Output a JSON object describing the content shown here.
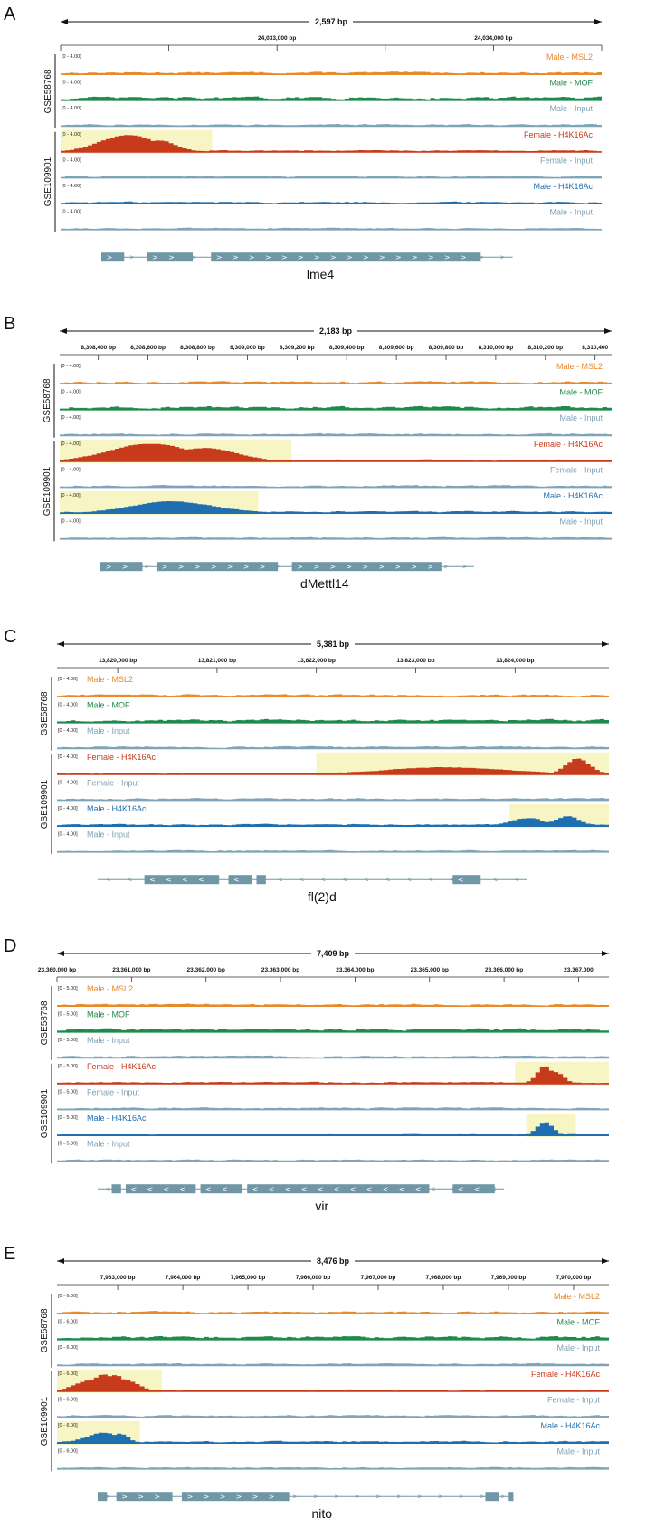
{
  "colors": {
    "Male - MSL2": "#e8892b",
    "Male - MOF": "#1e8a4c",
    "Male - Input": "#7fa3b7",
    "Female - H4K16Ac": "#c83a1c",
    "Female - Input": "#7fa3b7",
    "Male - H4K16Ac": "#1f6fb0",
    "highlight": "#f7f5c4",
    "gene": "#6f97a6"
  },
  "groups": [
    "GSE58768",
    "GSE109901"
  ],
  "tracks": [
    "Male - MSL2",
    "Male - MOF",
    "Male - Input",
    "Female - H4K16Ac",
    "Female - Input",
    "Male - H4K16Ac",
    "Male - Input"
  ],
  "panels": [
    {
      "letter": "A",
      "span_label": "2,597 bp",
      "ticks": [
        {
          "label": "",
          "pos": 0.0
        },
        {
          "label": "",
          "pos": 0.2
        },
        {
          "label": "24,033,000 bp",
          "pos": 0.4
        },
        {
          "label": "",
          "pos": 0.6
        },
        {
          "label": "24,034,000 bp",
          "pos": 0.8
        },
        {
          "label": "",
          "pos": 1.0
        }
      ],
      "range": "[0 - 4.00]",
      "label_side": "right",
      "gene": "lme4",
      "highlights": [
        {
          "track": 3,
          "from": 0.0,
          "to": 0.28
        }
      ],
      "peaks": {
        "3": [
          [
            0.12,
            0.07,
            0.9
          ],
          [
            0.18,
            0.04,
            0.6
          ]
        ]
      },
      "exons": [
        [
          0.0,
          0.05
        ],
        [
          0.1,
          0.2
        ],
        [
          0.24,
          0.83
        ]
      ],
      "gene_strand": ">",
      "gene_extent": [
        0.0,
        0.9
      ]
    },
    {
      "letter": "B",
      "span_label": "2,183 bp",
      "ticks": [
        {
          "label": "8,308,400 bp",
          "pos": 0.07
        },
        {
          "label": "8,308,600 bp",
          "pos": 0.16
        },
        {
          "label": "8,308,800 bp",
          "pos": 0.25
        },
        {
          "label": "8,309,000 bp",
          "pos": 0.34
        },
        {
          "label": "8,309,200 bp",
          "pos": 0.43
        },
        {
          "label": "8,309,400 bp",
          "pos": 0.52
        },
        {
          "label": "8,309,600 bp",
          "pos": 0.61
        },
        {
          "label": "8,309,800 bp",
          "pos": 0.7
        },
        {
          "label": "8,310,000 bp",
          "pos": 0.79
        },
        {
          "label": "8,310,200 bp",
          "pos": 0.88
        },
        {
          "label": "8,310,400",
          "pos": 0.97
        }
      ],
      "range": "[0 - 4.00]",
      "label_side": "right",
      "gene": "dMettl14",
      "highlights": [
        {
          "track": 3,
          "from": 0.0,
          "to": 0.42
        },
        {
          "track": 5,
          "from": 0.0,
          "to": 0.36
        }
      ],
      "peaks": {
        "3": [
          [
            0.16,
            0.1,
            0.95
          ],
          [
            0.26,
            0.08,
            0.7
          ]
        ],
        "5": [
          [
            0.2,
            0.1,
            0.6
          ]
        ]
      },
      "exons": [
        [
          0.0,
          0.09
        ],
        [
          0.12,
          0.38
        ],
        [
          0.41,
          0.73
        ]
      ],
      "gene_strand": ">",
      "gene_extent": [
        0.0,
        0.8
      ]
    },
    {
      "letter": "C",
      "span_label": "5,381 bp",
      "ticks": [
        {
          "label": "13,820,000 bp",
          "pos": 0.11
        },
        {
          "label": "13,821,000 bp",
          "pos": 0.29
        },
        {
          "label": "13,822,000 bp",
          "pos": 0.47
        },
        {
          "label": "13,823,000 bp",
          "pos": 0.65
        },
        {
          "label": "13,824,000 bp",
          "pos": 0.83
        }
      ],
      "range": "[0 - 4.00]",
      "label_side": "left",
      "gene": "fl(2)d",
      "highlights": [
        {
          "track": 3,
          "from": 0.47,
          "to": 1.0
        },
        {
          "track": 5,
          "from": 0.82,
          "to": 1.0
        }
      ],
      "peaks": {
        "3": [
          [
            0.94,
            0.03,
            0.85
          ],
          [
            0.7,
            0.15,
            0.35
          ]
        ],
        "5": [
          [
            0.92,
            0.03,
            0.5
          ],
          [
            0.85,
            0.04,
            0.4
          ]
        ]
      },
      "exons": [
        [
          0.1,
          0.26
        ],
        [
          0.28,
          0.33
        ],
        [
          0.34,
          0.36
        ],
        [
          0.76,
          0.82
        ]
      ],
      "gene_strand": "<",
      "gene_extent": [
        0.0,
        0.92
      ]
    },
    {
      "letter": "D",
      "span_label": "7,409 bp",
      "ticks": [
        {
          "label": "23,360,000 bp",
          "pos": 0.0
        },
        {
          "label": "23,361,000 bp",
          "pos": 0.135
        },
        {
          "label": "23,362,000 bp",
          "pos": 0.27
        },
        {
          "label": "23,363,000 bp",
          "pos": 0.405
        },
        {
          "label": "23,364,000 bp",
          "pos": 0.54
        },
        {
          "label": "23,365,000 bp",
          "pos": 0.675
        },
        {
          "label": "23,366,000 bp",
          "pos": 0.81
        },
        {
          "label": "23,367,000",
          "pos": 0.945
        }
      ],
      "range": "[0 - 5.00]",
      "label_side": "left",
      "gene": "vir",
      "highlights": [
        {
          "track": 3,
          "from": 0.83,
          "to": 1.0
        },
        {
          "track": 5,
          "from": 0.85,
          "to": 0.94
        }
      ],
      "peaks": {
        "3": [
          [
            0.88,
            0.02,
            0.95
          ],
          [
            0.9,
            0.02,
            0.6
          ]
        ],
        "5": [
          [
            0.88,
            0.02,
            0.7
          ]
        ]
      },
      "exons": [
        [
          0.03,
          0.05
        ],
        [
          0.06,
          0.21
        ],
        [
          0.22,
          0.31
        ],
        [
          0.32,
          0.71
        ],
        [
          0.76,
          0.85
        ]
      ],
      "gene_strand": "<",
      "gene_extent": [
        0.0,
        0.87
      ]
    },
    {
      "letter": "E",
      "span_label": "8,476 bp",
      "ticks": [
        {
          "label": "7,963,000 bp",
          "pos": 0.11
        },
        {
          "label": "7,964,000 bp",
          "pos": 0.228
        },
        {
          "label": "7,965,000 bp",
          "pos": 0.346
        },
        {
          "label": "7,966,000 bp",
          "pos": 0.464
        },
        {
          "label": "7,967,000 bp",
          "pos": 0.582
        },
        {
          "label": "7,968,000 bp",
          "pos": 0.7
        },
        {
          "label": "7,969,000 bp",
          "pos": 0.818
        },
        {
          "label": "7,970,000 bp",
          "pos": 0.936
        }
      ],
      "range": "[0 - 6.00]",
      "label_side": "right",
      "gene": "nito",
      "highlights": [
        {
          "track": 3,
          "from": 0.0,
          "to": 0.19
        },
        {
          "track": 5,
          "from": 0.0,
          "to": 0.15
        }
      ],
      "peaks": {
        "3": [
          [
            0.08,
            0.03,
            0.9
          ],
          [
            0.1,
            0.03,
            0.85
          ],
          [
            0.06,
            0.04,
            0.6
          ],
          [
            0.12,
            0.03,
            0.6
          ]
        ],
        "5": [
          [
            0.08,
            0.04,
            0.55
          ],
          [
            0.11,
            0.02,
            0.5
          ]
        ]
      },
      "exons": [
        [
          0.0,
          0.02
        ],
        [
          0.04,
          0.16
        ],
        [
          0.18,
          0.41
        ],
        [
          0.83,
          0.86
        ],
        [
          0.88,
          0.89
        ]
      ],
      "gene_strand": ">",
      "gene_extent": [
        0.0,
        0.89
      ]
    }
  ]
}
